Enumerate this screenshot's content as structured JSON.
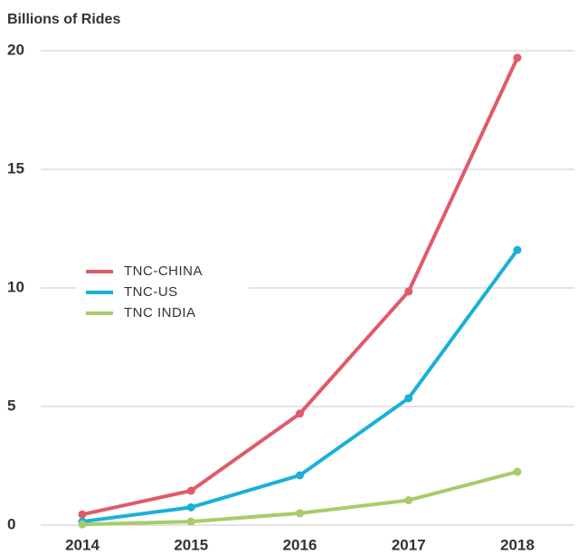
{
  "chart_data": {
    "type": "line",
    "y_axis_label": "Billions of Rides",
    "categories": [
      "2014",
      "2015",
      "2016",
      "2017",
      "2018"
    ],
    "series": [
      {
        "name": "TNC-CHINA",
        "color": "#e05a6a",
        "values": [
          0.45,
          1.45,
          4.7,
          9.85,
          19.7
        ]
      },
      {
        "name": "TNC-US",
        "color": "#1ab0d8",
        "values": [
          0.15,
          0.75,
          2.1,
          5.35,
          11.6
        ]
      },
      {
        "name": "TNC INDIA",
        "color": "#a8cc6a",
        "values": [
          0.03,
          0.15,
          0.5,
          1.05,
          2.25
        ]
      }
    ],
    "ylim": [
      0,
      20
    ],
    "yticks": [
      0,
      5,
      10,
      15,
      20
    ],
    "grid": true,
    "legend": "center-left"
  }
}
